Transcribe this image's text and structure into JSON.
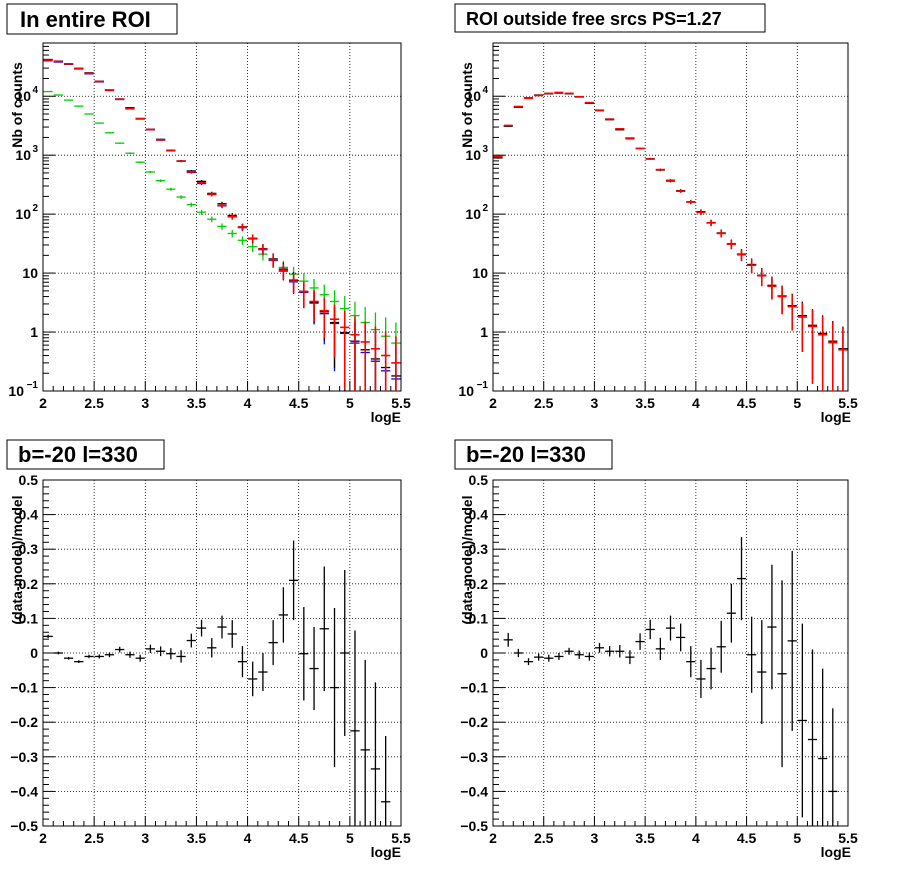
{
  "chart_data": [
    {
      "type": "scatter",
      "title": "In entire ROI",
      "xlabel": "logE",
      "ylabel": "Nb of counts",
      "xlim": [
        2,
        5.5
      ],
      "ylim": [
        0.1,
        80000
      ],
      "yscale": "log",
      "grid": true,
      "xticks": [
        "2",
        "2.5",
        "3",
        "3.5",
        "4",
        "4.5",
        "5",
        "5.5"
      ],
      "yticks": [
        {
          "base": "10",
          "exp": "−1"
        },
        {
          "base": "1",
          "exp": ""
        },
        {
          "base": "10",
          "exp": ""
        },
        {
          "base": "10",
          "exp": "2"
        },
        {
          "base": "10",
          "exp": "3"
        },
        {
          "base": "10",
          "exp": "4"
        }
      ],
      "series": [
        {
          "color": "#0000ff",
          "x": [
            2.05,
            2.15,
            2.25,
            2.35,
            2.45,
            2.55,
            2.65,
            2.75,
            2.85,
            2.95,
            3.05,
            3.15,
            3.25,
            3.35,
            3.45,
            3.55,
            3.65,
            3.75,
            3.85,
            3.95,
            4.05,
            4.15,
            4.25,
            4.35,
            4.45,
            4.55,
            4.65,
            4.75,
            4.85,
            4.95,
            5.05,
            5.15,
            5.25,
            5.35,
            5.45
          ],
          "y": [
            40000,
            38000,
            35000,
            29000,
            24000,
            17500,
            12500,
            8800,
            6100,
            4100,
            2700,
            1800,
            1200,
            790,
            510,
            330,
            215,
            138,
            90,
            59,
            38,
            25,
            16.5,
            10.8,
            7.1,
            4.7,
            3.1,
            2.05,
            1.4,
            0.95,
            0.65,
            0.45,
            0.32,
            0.22,
            0.16
          ]
        },
        {
          "color": "#000000",
          "x": [
            2.05,
            2.15,
            2.25,
            2.35,
            2.45,
            2.55,
            2.65,
            2.75,
            2.85,
            2.95,
            3.05,
            3.15,
            3.25,
            3.35,
            3.45,
            3.55,
            3.65,
            3.75,
            3.85,
            3.95,
            4.05,
            4.15,
            4.25,
            4.35,
            4.45,
            4.55,
            4.65,
            4.75,
            4.85,
            4.95,
            5.05,
            5.15,
            5.25,
            5.35,
            5.45
          ],
          "y": [
            42000,
            39500,
            35000,
            29800,
            25000,
            18000,
            12800,
            9000,
            6400,
            4200,
            2750,
            1860,
            1210,
            800,
            540,
            360,
            225,
            150,
            95,
            61,
            39,
            26,
            17.4,
            11.7,
            7.6,
            4.9,
            3.2,
            2.2,
            1.45,
            0.98,
            0.7,
            0.5,
            0.35,
            0.25,
            0.18
          ]
        }
      ]
    },
    {
      "type": "scatter",
      "title": "ROI outside free srcs PS=1.27",
      "xlabel": "logE",
      "ylabel": "Nb of counts",
      "xlim": [
        2,
        5.5
      ],
      "ylim": [
        0.1,
        80000
      ],
      "yscale": "log",
      "grid": true,
      "xticks": [
        "2",
        "2.5",
        "3",
        "3.5",
        "4",
        "4.5",
        "5",
        "5.5"
      ],
      "yticks": [
        {
          "base": "10",
          "exp": "−1"
        },
        {
          "base": "1",
          "exp": ""
        },
        {
          "base": "10",
          "exp": ""
        },
        {
          "base": "10",
          "exp": "2"
        },
        {
          "base": "10",
          "exp": "3"
        },
        {
          "base": "10",
          "exp": "4"
        }
      ],
      "series": []
    },
    {
      "type": "scatter",
      "title": "b=-20 l=330",
      "xlabel": "logE",
      "ylabel": "(data-model)/model",
      "xlim": [
        2,
        5.5
      ],
      "ylim": [
        -0.5,
        0.5
      ],
      "grid": true,
      "xticks": [
        "2",
        "2.5",
        "3",
        "3.5",
        "4",
        "4.5",
        "5",
        "5.5"
      ],
      "yticks": [
        "−0.5",
        "−0.4",
        "−0.3",
        "−0.2",
        "−0.1",
        "0",
        "0.1",
        "0.2",
        "0.3",
        "0.4",
        "0.5"
      ],
      "series": []
    },
    {
      "type": "scatter",
      "title": "b=-20 l=330",
      "xlabel": "logE",
      "ylabel": "(data-model)/model",
      "xlim": [
        2,
        5.5
      ],
      "ylim": [
        -0.5,
        0.5
      ],
      "grid": true,
      "xticks": [
        "2",
        "2.5",
        "3",
        "3.5",
        "4",
        "4.5",
        "5",
        "5.5"
      ],
      "yticks": [
        "−0.5",
        "−0.4",
        "−0.3",
        "−0.2",
        "−0.1",
        "0",
        "0.1",
        "0.2",
        "0.3",
        "0.4",
        "0.5"
      ],
      "series": []
    }
  ],
  "series_templates": {
    "green": {
      "color": "#00cc00",
      "x": [
        2.05,
        2.15,
        2.25,
        2.35,
        2.45,
        2.55,
        2.65,
        2.75,
        2.85,
        2.95,
        3.05,
        3.15,
        3.25,
        3.35,
        3.45,
        3.55,
        3.65,
        3.75,
        3.85,
        3.95,
        4.05,
        4.15,
        4.25,
        4.35,
        4.45,
        4.55,
        4.65,
        4.75,
        4.85,
        4.95,
        5.05,
        5.15,
        5.25,
        5.35,
        5.45
      ],
      "y": [
        12000,
        10500,
        8600,
        6800,
        5000,
        3500,
        2400,
        1600,
        1080,
        760,
        520,
        370,
        265,
        195,
        145,
        108,
        82,
        62,
        47,
        36,
        28,
        21,
        16.3,
        12.5,
        9.6,
        7.3,
        5.6,
        4.3,
        3.3,
        2.5,
        1.9,
        1.45,
        1.1,
        0.85,
        0.65
      ]
    }
  }
}
